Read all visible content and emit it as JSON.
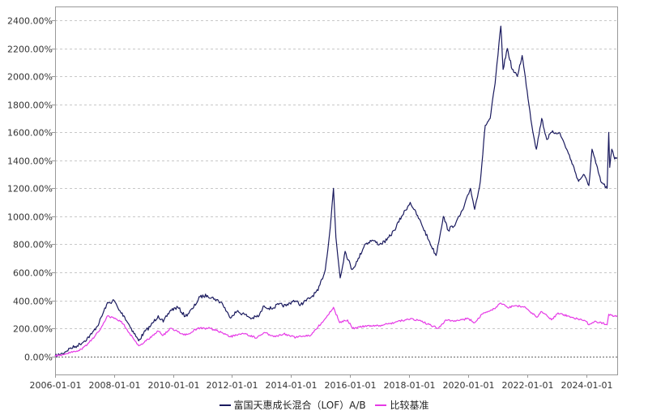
{
  "chart_data": {
    "type": "line",
    "ylim": [
      -130,
      2500
    ],
    "xlim": [
      "2006-01-01",
      "2025-01-21"
    ],
    "y_ticks": [
      0,
      200,
      400,
      600,
      800,
      1000,
      1200,
      1400,
      1600,
      1800,
      2000,
      2200,
      2400
    ],
    "y_tick_labels": [
      "0.00%",
      "200.00%",
      "400.00%",
      "600.00%",
      "800.00%",
      "1000.00%",
      "1200.00%",
      "1400.00%",
      "1600.00%",
      "1800.00%",
      "2000.00%",
      "2200.00%",
      "2400.00%"
    ],
    "x_ticks": [
      "2006-01-01",
      "2008-01-01",
      "2010-01-01",
      "2012-01-01",
      "2014-01-01",
      "2016-01-01",
      "2018-01-01",
      "2020-01-01",
      "2022-01-01",
      "2024-01-01"
    ],
    "grid": true,
    "legend_position": "bottom",
    "colors": {
      "fund": "#1a1a5e",
      "benchmark": "#e63ae6",
      "zero_line": "#666666",
      "grid": "#c8c8c8",
      "axis": "#999999"
    },
    "series": [
      {
        "name": "富国天惠成长混合（LOF）A/B",
        "color": "#1a1a5e",
        "points": [
          [
            "2006-01-01",
            0
          ],
          [
            "2006-04-01",
            20
          ],
          [
            "2006-07-01",
            55
          ],
          [
            "2006-10-01",
            75
          ],
          [
            "2007-01-01",
            110
          ],
          [
            "2007-04-01",
            160
          ],
          [
            "2007-07-01",
            240
          ],
          [
            "2007-10-01",
            370
          ],
          [
            "2008-01-01",
            400
          ],
          [
            "2008-03-01",
            330
          ],
          [
            "2008-05-01",
            290
          ],
          [
            "2008-08-01",
            200
          ],
          [
            "2008-11-01",
            110
          ],
          [
            "2009-01-01",
            165
          ],
          [
            "2009-04-01",
            220
          ],
          [
            "2009-07-01",
            290
          ],
          [
            "2009-09-01",
            245
          ],
          [
            "2009-12-01",
            330
          ],
          [
            "2010-03-01",
            350
          ],
          [
            "2010-06-01",
            285
          ],
          [
            "2010-09-01",
            340
          ],
          [
            "2010-12-01",
            425
          ],
          [
            "2011-03-01",
            435
          ],
          [
            "2011-06-01",
            410
          ],
          [
            "2011-09-01",
            380
          ],
          [
            "2011-12-01",
            280
          ],
          [
            "2012-03-01",
            320
          ],
          [
            "2012-06-01",
            300
          ],
          [
            "2012-09-01",
            270
          ],
          [
            "2012-12-01",
            290
          ],
          [
            "2013-02-01",
            360
          ],
          [
            "2013-05-01",
            340
          ],
          [
            "2013-08-01",
            370
          ],
          [
            "2013-11-01",
            360
          ],
          [
            "2014-02-01",
            400
          ],
          [
            "2014-05-01",
            370
          ],
          [
            "2014-09-01",
            420
          ],
          [
            "2014-12-01",
            470
          ],
          [
            "2015-03-01",
            620
          ],
          [
            "2015-05-01",
            920
          ],
          [
            "2015-06-10",
            1200
          ],
          [
            "2015-07-10",
            850
          ],
          [
            "2015-09-01",
            560
          ],
          [
            "2015-11-01",
            750
          ],
          [
            "2016-01-25",
            620
          ],
          [
            "2016-04-01",
            680
          ],
          [
            "2016-07-01",
            800
          ],
          [
            "2016-10-01",
            830
          ],
          [
            "2017-01-01",
            800
          ],
          [
            "2017-04-01",
            830
          ],
          [
            "2017-07-01",
            900
          ],
          [
            "2017-10-01",
            1000
          ],
          [
            "2018-01-15",
            1100
          ],
          [
            "2018-03-01",
            1050
          ],
          [
            "2018-06-01",
            950
          ],
          [
            "2018-09-01",
            830
          ],
          [
            "2018-12-01",
            720
          ],
          [
            "2019-03-01",
            1000
          ],
          [
            "2019-05-01",
            900
          ],
          [
            "2019-08-01",
            950
          ],
          [
            "2019-11-01",
            1050
          ],
          [
            "2020-02-01",
            1200
          ],
          [
            "2020-03-23",
            1050
          ],
          [
            "2020-06-01",
            1250
          ],
          [
            "2020-08-01",
            1650
          ],
          [
            "2020-10-01",
            1700
          ],
          [
            "2020-12-01",
            1950
          ],
          [
            "2021-02-10",
            2360
          ],
          [
            "2021-03-10",
            2050
          ],
          [
            "2021-05-01",
            2200
          ],
          [
            "2021-07-01",
            2050
          ],
          [
            "2021-09-01",
            2000
          ],
          [
            "2021-11-01",
            2150
          ],
          [
            "2022-01-01",
            1900
          ],
          [
            "2022-03-01",
            1650
          ],
          [
            "2022-04-26",
            1480
          ],
          [
            "2022-07-01",
            1700
          ],
          [
            "2022-09-01",
            1550
          ],
          [
            "2022-11-01",
            1600
          ],
          [
            "2023-02-01",
            1600
          ],
          [
            "2023-04-01",
            1530
          ],
          [
            "2023-07-01",
            1400
          ],
          [
            "2023-10-01",
            1250
          ],
          [
            "2023-12-01",
            1300
          ],
          [
            "2024-02-05",
            1220
          ],
          [
            "2024-03-15",
            1480
          ],
          [
            "2024-05-01",
            1380
          ],
          [
            "2024-07-01",
            1250
          ],
          [
            "2024-09-18",
            1200
          ],
          [
            "2024-10-08",
            1600
          ],
          [
            "2024-10-20",
            1350
          ],
          [
            "2024-11-15",
            1480
          ],
          [
            "2024-12-20",
            1410
          ],
          [
            "2025-01-20",
            1420
          ]
        ]
      },
      {
        "name": "比较基准",
        "color": "#e63ae6",
        "points": [
          [
            "2006-01-01",
            0
          ],
          [
            "2006-06-01",
            20
          ],
          [
            "2006-12-01",
            50
          ],
          [
            "2007-04-01",
            120
          ],
          [
            "2007-07-01",
            180
          ],
          [
            "2007-10-15",
            290
          ],
          [
            "2008-01-01",
            270
          ],
          [
            "2008-04-01",
            250
          ],
          [
            "2008-07-01",
            170
          ],
          [
            "2008-11-01",
            75
          ],
          [
            "2009-02-01",
            110
          ],
          [
            "2009-07-01",
            180
          ],
          [
            "2009-09-01",
            150
          ],
          [
            "2009-12-01",
            200
          ],
          [
            "2010-06-01",
            150
          ],
          [
            "2010-11-01",
            200
          ],
          [
            "2011-04-01",
            200
          ],
          [
            "2011-09-01",
            170
          ],
          [
            "2011-12-01",
            140
          ],
          [
            "2012-06-01",
            160
          ],
          [
            "2012-11-01",
            130
          ],
          [
            "2013-02-01",
            170
          ],
          [
            "2013-06-01",
            140
          ],
          [
            "2013-10-01",
            160
          ],
          [
            "2014-03-01",
            135
          ],
          [
            "2014-09-01",
            150
          ],
          [
            "2014-12-01",
            210
          ],
          [
            "2015-03-01",
            270
          ],
          [
            "2015-06-10",
            350
          ],
          [
            "2015-08-25",
            240
          ],
          [
            "2015-12-01",
            260
          ],
          [
            "2016-02-01",
            200
          ],
          [
            "2016-07-01",
            215
          ],
          [
            "2017-01-01",
            220
          ],
          [
            "2017-07-01",
            240
          ],
          [
            "2018-01-20",
            270
          ],
          [
            "2018-06-01",
            250
          ],
          [
            "2018-10-01",
            220
          ],
          [
            "2019-01-01",
            200
          ],
          [
            "2019-04-01",
            260
          ],
          [
            "2019-08-01",
            250
          ],
          [
            "2020-01-01",
            270
          ],
          [
            "2020-03-23",
            240
          ],
          [
            "2020-07-10",
            310
          ],
          [
            "2020-12-01",
            340
          ],
          [
            "2021-02-10",
            380
          ],
          [
            "2021-05-01",
            350
          ],
          [
            "2021-09-01",
            360
          ],
          [
            "2021-12-01",
            355
          ],
          [
            "2022-04-26",
            280
          ],
          [
            "2022-07-01",
            320
          ],
          [
            "2022-10-30",
            260
          ],
          [
            "2023-01-20",
            310
          ],
          [
            "2023-07-01",
            280
          ],
          [
            "2024-01-01",
            250
          ],
          [
            "2024-02-05",
            225
          ],
          [
            "2024-05-01",
            250
          ],
          [
            "2024-09-18",
            225
          ],
          [
            "2024-10-08",
            300
          ],
          [
            "2024-12-01",
            285
          ],
          [
            "2025-01-20",
            290
          ]
        ]
      }
    ]
  }
}
